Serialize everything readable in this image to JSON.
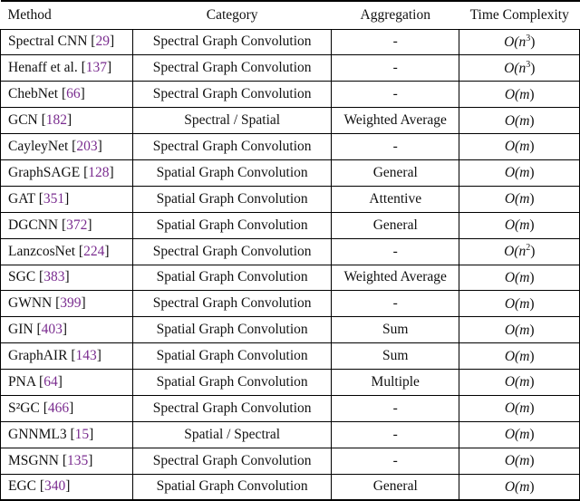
{
  "headers": {
    "method": "Method",
    "category": "Category",
    "aggregation": "Aggregation",
    "time": "Time Complexity"
  },
  "rows": [
    {
      "name": "Spectral CNN",
      "ref": "29",
      "category": "Spectral Graph Convolution",
      "aggregation": "-",
      "time_pre": "O(",
      "time_var": "n",
      "time_exp": "3",
      "time_post": ")"
    },
    {
      "name": "Henaff et al.",
      "ref": "137",
      "category": "Spectral Graph Convolution",
      "aggregation": "-",
      "time_pre": "O(",
      "time_var": "n",
      "time_exp": "3",
      "time_post": ")"
    },
    {
      "name": "ChebNet",
      "ref": "66",
      "category": "Spectral Graph Convolution",
      "aggregation": "-",
      "time_pre": "O(",
      "time_var": "m",
      "time_exp": "",
      "time_post": ")"
    },
    {
      "name": "GCN",
      "ref": "182",
      "category": "Spectral / Spatial",
      "aggregation": "Weighted Average",
      "time_pre": "O(",
      "time_var": "m",
      "time_exp": "",
      "time_post": ")"
    },
    {
      "name": "CayleyNet",
      "ref": "203",
      "category": "Spectral Graph Convolution",
      "aggregation": "-",
      "time_pre": "O(",
      "time_var": "m",
      "time_exp": "",
      "time_post": ")"
    },
    {
      "name": "GraphSAGE",
      "ref": "128",
      "category": "Spatial Graph Convolution",
      "aggregation": "General",
      "time_pre": "O(",
      "time_var": "m",
      "time_exp": "",
      "time_post": ")"
    },
    {
      "name": "GAT",
      "ref": "351",
      "category": "Spatial Graph Convolution",
      "aggregation": "Attentive",
      "time_pre": "O(",
      "time_var": "m",
      "time_exp": "",
      "time_post": ")"
    },
    {
      "name": "DGCNN",
      "ref": "372",
      "category": "Spatial Graph Convolution",
      "aggregation": "General",
      "time_pre": "O(",
      "time_var": "m",
      "time_exp": "",
      "time_post": ")"
    },
    {
      "name": "LanzcosNet",
      "ref": "224",
      "category": "Spectral Graph Convolution",
      "aggregation": "-",
      "time_pre": "O(",
      "time_var": "n",
      "time_exp": "2",
      "time_post": ")"
    },
    {
      "name": "SGC",
      "ref": "383",
      "category": "Spatial Graph Convolution",
      "aggregation": "Weighted Average",
      "time_pre": "O(",
      "time_var": "m",
      "time_exp": "",
      "time_post": ")"
    },
    {
      "name": "GWNN",
      "ref": "399",
      "category": "Spectral Graph Convolution",
      "aggregation": "-",
      "time_pre": "O(",
      "time_var": "m",
      "time_exp": "",
      "time_post": ")"
    },
    {
      "name": "GIN",
      "ref": "403",
      "category": "Spatial Graph Convolution",
      "aggregation": "Sum",
      "time_pre": "O(",
      "time_var": "m",
      "time_exp": "",
      "time_post": ")"
    },
    {
      "name": "GraphAIR",
      "ref": "143",
      "category": "Spatial Graph Convolution",
      "aggregation": "Sum",
      "time_pre": "O(",
      "time_var": "m",
      "time_exp": "",
      "time_post": ")"
    },
    {
      "name": "PNA",
      "ref": "64",
      "category": "Spatial Graph Convolution",
      "aggregation": "Multiple",
      "time_pre": "O(",
      "time_var": "m",
      "time_exp": "",
      "time_post": ")"
    },
    {
      "name": "S²GC",
      "ref": "466",
      "category": "Spectral Graph Convolution",
      "aggregation": "-",
      "time_pre": "O(",
      "time_var": "m",
      "time_exp": "",
      "time_post": ")"
    },
    {
      "name": "GNNML3",
      "ref": "15",
      "category": "Spatial / Spectral",
      "aggregation": "-",
      "time_pre": "O(",
      "time_var": "m",
      "time_exp": "",
      "time_post": ")"
    },
    {
      "name": "MSGNN",
      "ref": "135",
      "category": "Spectral Graph Convolution",
      "aggregation": "-",
      "time_pre": "O(",
      "time_var": "m",
      "time_exp": "",
      "time_post": ")"
    },
    {
      "name": "EGC",
      "ref": "340",
      "category": "Spatial Graph Convolution",
      "aggregation": "General",
      "time_pre": "O(",
      "time_var": "m",
      "time_exp": "",
      "time_post": ")"
    }
  ]
}
